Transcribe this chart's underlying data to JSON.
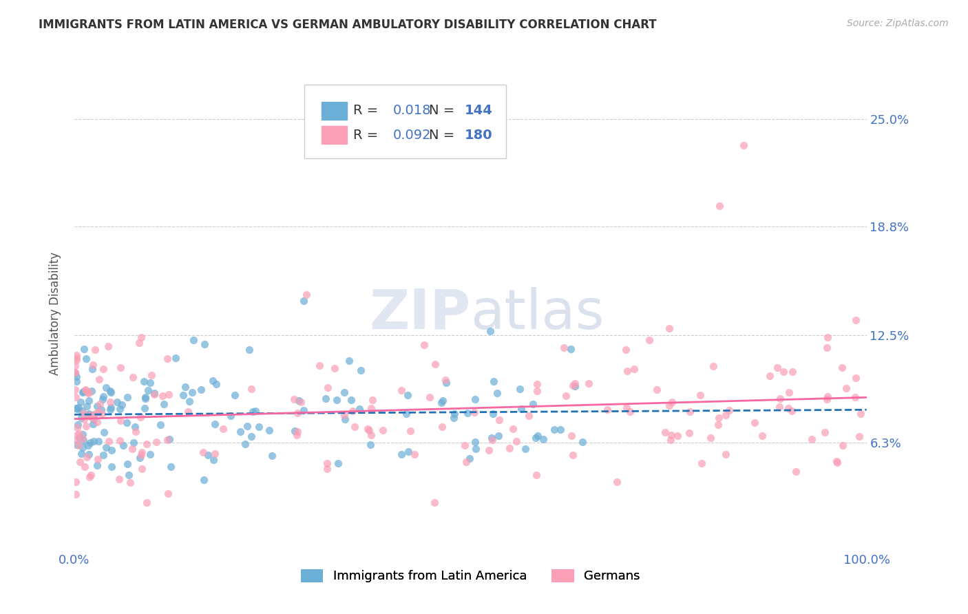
{
  "title": "IMMIGRANTS FROM LATIN AMERICA VS GERMAN AMBULATORY DISABILITY CORRELATION CHART",
  "source": "Source: ZipAtlas.com",
  "ylabel": "Ambulatory Disability",
  "ytick_labels": [
    "6.3%",
    "12.5%",
    "18.8%",
    "25.0%"
  ],
  "ytick_values": [
    0.063,
    0.125,
    0.188,
    0.25
  ],
  "xlim": [
    0.0,
    1.0
  ],
  "ylim": [
    0.0,
    0.275
  ],
  "color_blue": "#6baed6",
  "color_pink": "#fa9fb5",
  "color_blue_line": "#2171b5",
  "color_pink_line": "#f768a1",
  "watermark_zip": "ZIP",
  "watermark_atlas": "atlas",
  "background_color": "#ffffff",
  "grid_color": "#cccccc",
  "title_color": "#333333",
  "axis_label_color": "#4472c4",
  "legend_entries": [
    "Immigrants from Latin America",
    "Germans"
  ],
  "R1": 0.018,
  "N1": 144,
  "R2": 0.092,
  "N2": 180,
  "seed": 42
}
